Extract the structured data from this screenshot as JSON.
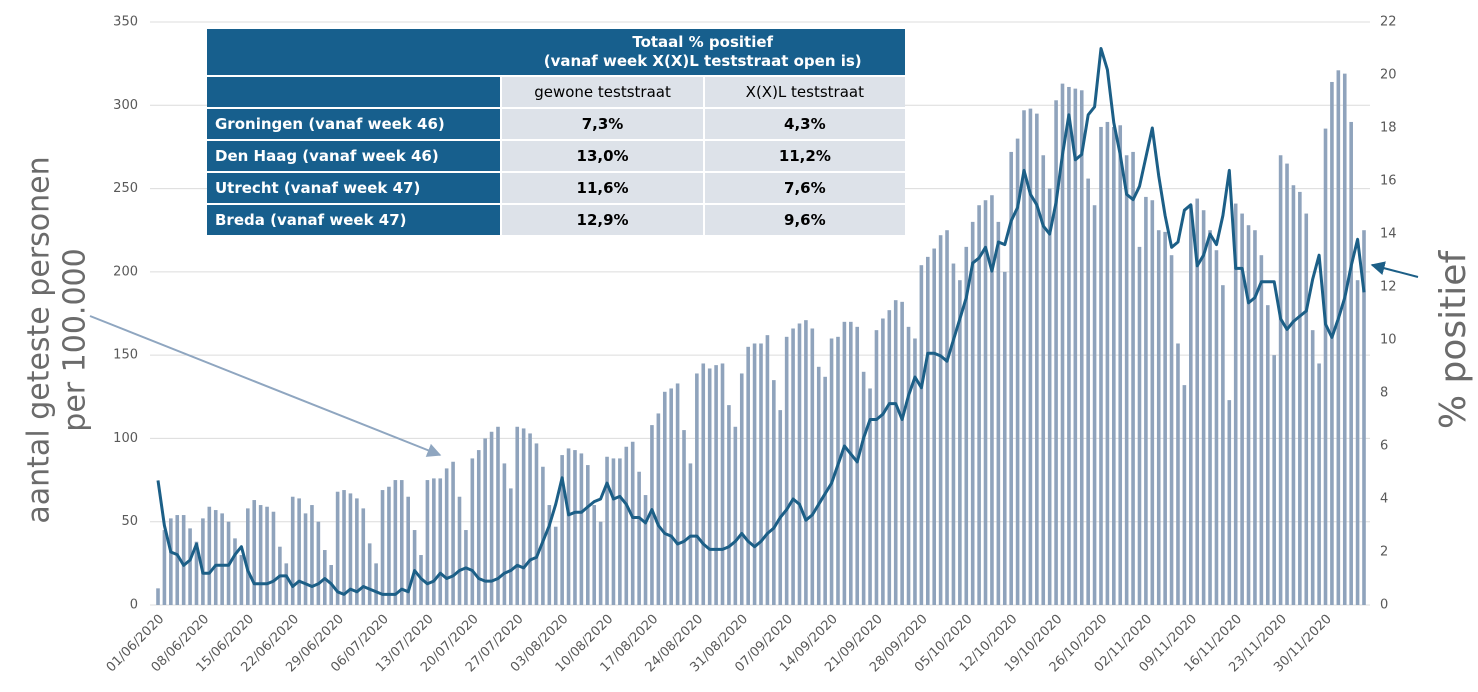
{
  "chart_data": {
    "type": "bar",
    "y_label": [
      "aantal geteste personen",
      "per 100.000"
    ],
    "y2_label": "% positief",
    "categories": [
      "01/06/2020",
      null,
      null,
      null,
      null,
      null,
      null,
      "08/06/2020",
      null,
      null,
      null,
      null,
      null,
      null,
      "15/06/2020",
      null,
      null,
      null,
      null,
      null,
      null,
      "22/06/2020",
      null,
      null,
      null,
      null,
      null,
      null,
      "29/06/2020",
      null,
      null,
      null,
      null,
      null,
      null,
      "06/07/2020",
      null,
      null,
      null,
      null,
      null,
      null,
      "13/07/2020",
      null,
      null,
      null,
      null,
      null,
      null,
      "20/07/2020",
      null,
      null,
      null,
      null,
      null,
      null,
      "27/07/2020",
      null,
      null,
      null,
      null,
      null,
      null,
      "03/08/2020",
      null,
      null,
      null,
      null,
      null,
      null,
      "10/08/2020",
      null,
      null,
      null,
      null,
      null,
      null,
      "17/08/2020",
      null,
      null,
      null,
      null,
      null,
      null,
      "24/08/2020",
      null,
      null,
      null,
      null,
      null,
      null,
      "31/08/2020",
      null,
      null,
      null,
      null,
      null,
      null,
      "07/09/2020",
      null,
      null,
      null,
      null,
      null,
      null,
      "14/09/2020",
      null,
      null,
      null,
      null,
      null,
      null,
      "21/09/2020",
      null,
      null,
      null,
      null,
      null,
      null,
      "28/09/2020",
      null,
      null,
      null,
      null,
      null,
      null,
      "05/10/2020",
      null,
      null,
      null,
      null,
      null,
      null,
      "12/10/2020",
      null,
      null,
      null,
      null,
      null,
      null,
      "19/10/2020",
      null,
      null,
      null,
      null,
      null,
      null,
      "26/10/2020",
      null,
      null,
      null,
      null,
      null,
      null,
      "02/11/2020",
      null,
      null,
      null,
      null,
      null,
      null,
      "09/11/2020",
      null,
      null,
      null,
      null,
      null,
      null,
      "16/11/2020",
      null,
      null,
      null,
      null,
      null,
      null,
      "23/11/2020",
      null,
      null,
      null,
      null,
      null,
      null,
      "30/11/2020",
      null,
      null,
      null,
      null,
      null,
      null
    ],
    "series": [
      {
        "type": "bar",
        "color": "#8fa3bc",
        "axis": "y",
        "values": [
          10,
          45,
          52,
          54,
          54,
          46,
          38,
          52,
          59,
          57,
          55,
          50,
          40,
          30,
          58,
          63,
          60,
          59,
          56,
          35,
          25,
          65,
          64,
          55,
          60,
          50,
          33,
          24,
          68,
          69,
          67,
          64,
          58,
          37,
          25,
          69,
          71,
          75,
          75,
          65,
          45,
          30,
          75,
          76,
          76,
          82,
          86,
          65,
          45,
          88,
          93,
          100,
          104,
          107,
          85,
          70,
          107,
          106,
          103,
          97,
          83,
          60,
          47,
          90,
          94,
          93,
          91,
          84,
          60,
          50,
          89,
          88,
          88,
          95,
          98,
          80,
          66,
          108,
          115,
          128,
          130,
          133,
          105,
          85,
          139,
          145,
          142,
          144,
          145,
          120,
          107,
          139,
          155,
          157,
          157,
          162,
          135,
          117,
          161,
          166,
          169,
          171,
          166,
          143,
          137,
          160,
          161,
          170,
          170,
          167,
          140,
          130,
          165,
          172,
          177,
          183,
          182,
          167,
          160,
          204,
          209,
          214,
          222,
          225,
          205,
          195,
          215,
          230,
          240,
          243,
          246,
          230,
          200,
          272,
          280,
          297,
          298,
          295,
          270,
          250,
          303,
          313,
          311,
          310,
          309,
          256,
          240,
          287,
          290,
          287,
          288,
          270,
          272,
          215,
          245,
          243,
          225,
          224,
          210,
          157,
          132,
          240,
          244,
          237,
          225,
          213,
          192,
          123,
          241,
          235,
          228,
          225,
          210,
          180,
          150,
          270,
          265,
          252,
          248,
          235,
          165,
          145,
          286,
          314,
          321,
          319,
          290,
          195,
          225
        ]
      },
      {
        "type": "line",
        "color": "#1c5f87",
        "axis": "y2",
        "values": [
          4.7,
          3.0,
          2.0,
          1.9,
          1.5,
          1.7,
          2.3,
          1.2,
          1.2,
          1.5,
          1.5,
          1.5,
          1.9,
          2.2,
          1.3,
          0.8,
          0.8,
          0.8,
          0.9,
          1.1,
          1.1,
          0.7,
          0.9,
          0.8,
          0.7,
          0.8,
          1.0,
          0.8,
          0.5,
          0.4,
          0.6,
          0.5,
          0.7,
          0.6,
          0.5,
          0.4,
          0.4,
          0.4,
          0.6,
          0.5,
          1.3,
          1.0,
          0.8,
          0.9,
          1.2,
          1.0,
          1.1,
          1.3,
          1.4,
          1.3,
          1.0,
          0.9,
          0.9,
          1.0,
          1.2,
          1.3,
          1.5,
          1.4,
          1.7,
          1.8,
          2.4,
          3.0,
          3.8,
          4.8,
          3.4,
          3.5,
          3.5,
          3.7,
          3.9,
          4.0,
          4.6,
          4.0,
          4.1,
          3.8,
          3.3,
          3.3,
          3.1,
          3.6,
          3.0,
          2.7,
          2.6,
          2.3,
          2.4,
          2.6,
          2.6,
          2.3,
          2.1,
          2.1,
          2.1,
          2.2,
          2.4,
          2.7,
          2.4,
          2.2,
          2.4,
          2.7,
          2.9,
          3.3,
          3.6,
          4.0,
          3.8,
          3.2,
          3.4,
          3.8,
          4.2,
          4.6,
          5.3,
          6.0,
          5.7,
          5.4,
          6.3,
          7.0,
          7.0,
          7.2,
          7.6,
          7.6,
          7.0,
          7.9,
          8.6,
          8.2,
          9.5,
          9.5,
          9.4,
          9.2,
          10.0,
          10.8,
          11.6,
          12.9,
          13.1,
          13.5,
          12.6,
          13.7,
          13.6,
          14.5,
          15.0,
          16.4,
          15.5,
          15.1,
          14.3,
          14.0,
          15.2,
          17.0,
          18.5,
          16.8,
          17.0,
          18.5,
          18.8,
          21.0,
          20.2,
          18.2,
          17.0,
          15.5,
          15.3,
          15.8,
          16.9,
          18.0,
          16.2,
          14.7,
          13.5,
          13.7,
          14.9,
          15.1,
          12.8,
          13.2,
          14.0,
          13.6,
          14.7,
          16.4,
          12.7,
          12.7,
          11.4,
          11.6,
          12.2,
          12.2,
          12.2,
          10.8,
          10.4,
          10.7,
          10.9,
          11.1,
          12.3,
          13.2,
          10.6,
          10.1,
          10.8,
          11.6,
          12.8,
          13.8,
          11.8
        ]
      }
    ],
    "ylim": [
      0,
      350
    ],
    "yticks": [
      0,
      50,
      100,
      150,
      200,
      250,
      300,
      350
    ],
    "y2lim": [
      0,
      22
    ],
    "y2ticks": [
      0,
      2,
      4,
      6,
      8,
      10,
      12,
      14,
      16,
      18,
      20,
      22
    ],
    "grid": true
  },
  "table": {
    "header": [
      "Totaal % positief",
      "(vanaf week X(X)L teststraat open is)"
    ],
    "columns": [
      "gewone teststraat",
      "X(X)L teststraat"
    ],
    "rows": [
      [
        "Groningen (vanaf week 46)",
        "7,3%",
        "4,3%"
      ],
      [
        "Den Haag (vanaf week 46)",
        "13,0%",
        "11,2%"
      ],
      [
        "Utrecht (vanaf week 47)",
        "11,6%",
        "7,6%"
      ],
      [
        "Breda (vanaf week 47)",
        "12,9%",
        "9,6%"
      ]
    ]
  }
}
